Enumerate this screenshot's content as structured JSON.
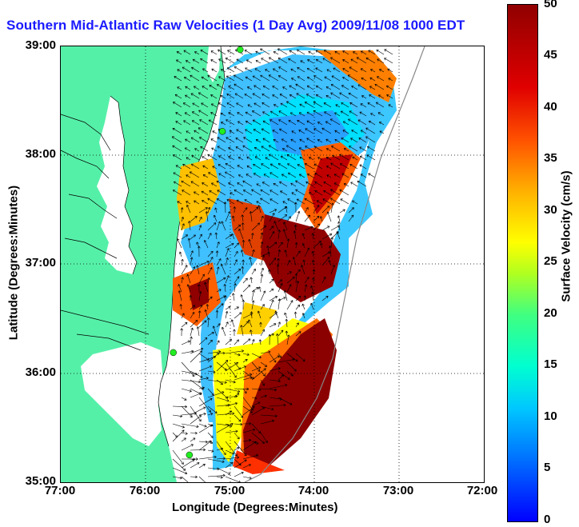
{
  "title": "Southern Mid-Atlantic Raw Velocities (1 Day Avg) 2009/11/08 1000 EDT",
  "axes": {
    "xlabel": "Longitude (Degrees:Minutes)",
    "ylabel": "Latitude (Degrees:Minutes)",
    "xticks": [
      "77:00",
      "76:00",
      "75:00",
      "74:00",
      "73:00",
      "72:00"
    ],
    "yticks": [
      "39:00",
      "38:00",
      "37:00",
      "36:00",
      "35:00"
    ],
    "xlim": [
      -77,
      -72
    ],
    "ylim": [
      35,
      39
    ],
    "grid": true
  },
  "colorbar": {
    "title": "Surface Velocity (cm/s)",
    "ticks": [
      "50",
      "45",
      "40",
      "35",
      "30",
      "25",
      "20",
      "15",
      "10",
      "5",
      "0"
    ],
    "range": [
      0,
      50
    ],
    "colormap": "jet"
  },
  "colors": {
    "land": "#55f0a8",
    "water": "#ffffff",
    "title": "#1a1aff",
    "station": "#22ee22"
  },
  "stations": [
    {
      "lon": -74.88,
      "lat": 38.97
    },
    {
      "lon": -75.09,
      "lat": 38.22
    },
    {
      "lon": -75.67,
      "lat": 36.19
    },
    {
      "lon": -75.48,
      "lat": 35.25
    }
  ]
}
